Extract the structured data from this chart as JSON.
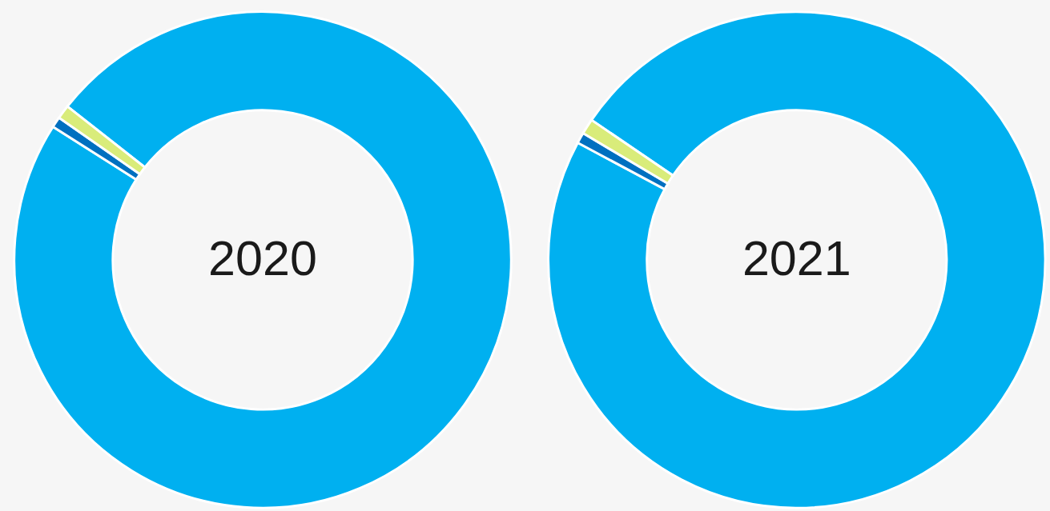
{
  "chart_data": [
    {
      "type": "donut",
      "title": "2020",
      "categories": [
        null,
        null,
        null
      ],
      "values": [
        98.4,
        0.7,
        0.9
      ],
      "colors": [
        "#00b0f0",
        "#0070c0",
        "#d9ec7a"
      ],
      "legend": false
    },
    {
      "type": "donut",
      "title": "2021",
      "categories": [
        null,
        null,
        null
      ],
      "values": [
        98.3,
        0.7,
        1.0
      ],
      "colors": [
        "#00b0f0",
        "#0070c0",
        "#d9ec7a"
      ],
      "legend": false
    }
  ]
}
